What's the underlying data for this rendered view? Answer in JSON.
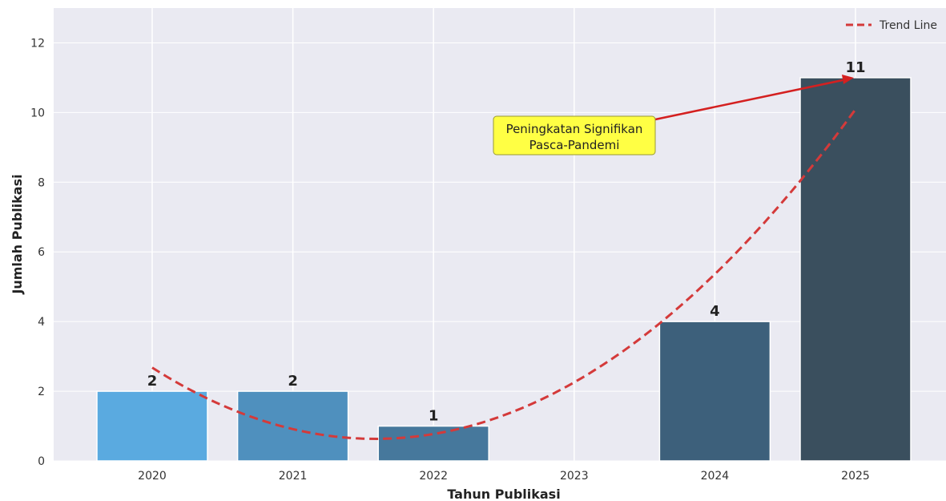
{
  "chart_data": {
    "type": "bar",
    "categories": [
      "2020",
      "2021",
      "2022",
      "2023",
      "2024",
      "2025"
    ],
    "values": [
      2,
      2,
      1,
      0,
      4,
      11
    ],
    "data_labels": [
      "2",
      "2",
      "1",
      "",
      "4",
      "11"
    ],
    "bar_colors": [
      "#5aaae0",
      "#4f90be",
      "#46789c",
      "#3f6a87",
      "#3d607b",
      "#3a4f5e"
    ],
    "xlabel": "Tahun Publikasi",
    "ylabel": "Jumlah Publikasi",
    "ylim": [
      0,
      13
    ],
    "yticks": [
      "0",
      "2",
      "4",
      "6",
      "8",
      "10",
      "12"
    ],
    "grid": true,
    "background": "#eaeaf2",
    "trend": {
      "name": "Trend Line",
      "style": "dashed",
      "color": "#d43a3a",
      "values": [
        2.7,
        0.91,
        0.68,
        2.33,
        5.39,
        10.06
      ]
    },
    "legend": {
      "position": "top-right",
      "label": "Trend Line"
    },
    "annotation": {
      "lines": [
        "Peningkatan Signifikan",
        "Pasca-Pandemi"
      ],
      "points_to": {
        "x": "2025",
        "y": 11
      },
      "box_color": "#ffff44",
      "arrow_color": "#d42020"
    }
  }
}
